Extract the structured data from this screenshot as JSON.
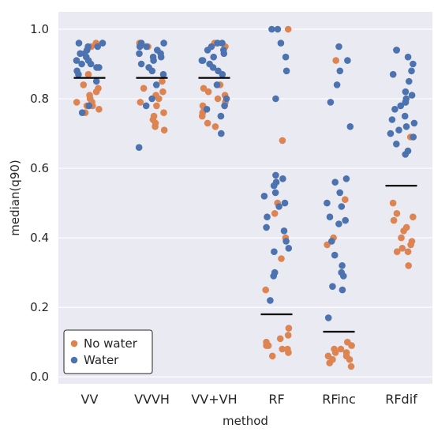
{
  "chart_data": {
    "type": "scatter",
    "subtype": "strip",
    "categories": [
      "VV",
      "VVVH",
      "VV+VH",
      "RF",
      "RFinc",
      "RFdif"
    ],
    "xlabel": "method",
    "ylabel": "median(q90)",
    "ylim": [
      -0.02,
      1.05
    ],
    "yticks": [
      "0.0",
      "0.2",
      "0.4",
      "0.6",
      "0.8",
      "1.0"
    ],
    "grid": true,
    "legend_position": "lower-left",
    "median_values": [
      0.86,
      0.86,
      0.86,
      0.18,
      0.13,
      0.55
    ],
    "series": [
      {
        "name": "No water",
        "color": "#dd8452",
        "values": [
          [
            0.96,
            0.95,
            0.87,
            0.84,
            0.83,
            0.82,
            0.81,
            0.8,
            0.8,
            0.79,
            0.79,
            0.78,
            0.78,
            0.77,
            0.76
          ],
          [
            0.96,
            0.95,
            0.85,
            0.83,
            0.82,
            0.81,
            0.8,
            0.79,
            0.78,
            0.76,
            0.75,
            0.74,
            0.73,
            0.72,
            0.71
          ],
          [
            0.96,
            0.95,
            0.84,
            0.83,
            0.82,
            0.81,
            0.8,
            0.79,
            0.78,
            0.77,
            0.76,
            0.75,
            0.73,
            0.72
          ],
          [
            1.0,
            0.68,
            0.5,
            0.47,
            0.4,
            0.34,
            0.25,
            0.14,
            0.12,
            0.11,
            0.1,
            0.09,
            0.09,
            0.08,
            0.08,
            0.07,
            0.06
          ],
          [
            0.91,
            0.51,
            0.4,
            0.38,
            0.1,
            0.09,
            0.08,
            0.08,
            0.07,
            0.07,
            0.06,
            0.06,
            0.05,
            0.05,
            0.04,
            0.03
          ],
          [
            0.69,
            0.5,
            0.47,
            0.46,
            0.45,
            0.43,
            0.42,
            0.4,
            0.39,
            0.38,
            0.37,
            0.36,
            0.36,
            0.32
          ]
        ]
      },
      {
        "name": "Water",
        "color": "#4c72b0",
        "values": [
          [
            0.96,
            0.96,
            0.95,
            0.95,
            0.94,
            0.93,
            0.93,
            0.92,
            0.91,
            0.91,
            0.9,
            0.9,
            0.89,
            0.89,
            0.88,
            0.87,
            0.85,
            0.78,
            0.76
          ],
          [
            0.96,
            0.96,
            0.95,
            0.95,
            0.94,
            0.93,
            0.93,
            0.92,
            0.92,
            0.91,
            0.9,
            0.89,
            0.88,
            0.87,
            0.84,
            0.8,
            0.78,
            0.66
          ],
          [
            0.96,
            0.96,
            0.95,
            0.94,
            0.94,
            0.93,
            0.92,
            0.91,
            0.91,
            0.9,
            0.89,
            0.88,
            0.87,
            0.84,
            0.8,
            0.78,
            0.77,
            0.75,
            0.7
          ],
          [
            1.0,
            1.0,
            0.96,
            0.92,
            0.88,
            0.8,
            0.58,
            0.57,
            0.56,
            0.55,
            0.53,
            0.52,
            0.5,
            0.49,
            0.46,
            0.43,
            0.42,
            0.39,
            0.37,
            0.36,
            0.3,
            0.29,
            0.22
          ],
          [
            0.95,
            0.91,
            0.88,
            0.84,
            0.79,
            0.72,
            0.57,
            0.56,
            0.53,
            0.5,
            0.49,
            0.46,
            0.45,
            0.44,
            0.39,
            0.35,
            0.32,
            0.3,
            0.29,
            0.26,
            0.25,
            0.17
          ],
          [
            0.94,
            0.94,
            0.92,
            0.9,
            0.88,
            0.87,
            0.85,
            0.82,
            0.81,
            0.8,
            0.79,
            0.79,
            0.78,
            0.77,
            0.75,
            0.74,
            0.73,
            0.72,
            0.71,
            0.7,
            0.69,
            0.67,
            0.65,
            0.64
          ]
        ]
      }
    ],
    "legend": [
      {
        "label": "No water",
        "color": "#dd8452"
      },
      {
        "label": "Water",
        "color": "#4c72b0"
      }
    ]
  }
}
